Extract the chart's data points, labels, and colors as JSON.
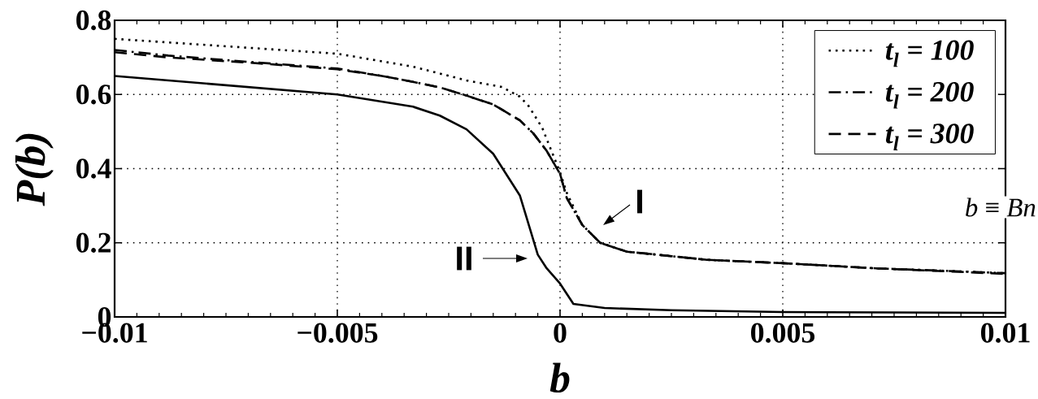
{
  "chart_data": {
    "type": "line",
    "xlabel": "b",
    "ylabel": "P(b)",
    "xlim": [
      -0.01,
      0.01
    ],
    "ylim": [
      0,
      0.8
    ],
    "xticks": [
      {
        "value": -0.01,
        "label": "−0.01"
      },
      {
        "value": -0.005,
        "label": "−0.005"
      },
      0,
      0.005,
      0.01
    ],
    "yticks": [
      0,
      0.2,
      0.4,
      0.6,
      0.8
    ],
    "grid": true,
    "legend": "top right",
    "series": [
      {
        "name": "t$_{l}$ = 100",
        "color": "#000000",
        "line_style": "dotted",
        "x": [
          -0.01,
          -0.0075,
          -0.005,
          -0.0033,
          -0.0021,
          -0.0013,
          -0.0009,
          -0.0007,
          -0.0004,
          -0.0002,
          0,
          0.00015,
          0.0005,
          0.0009,
          0.0015,
          0.0025,
          0.0033,
          0.005,
          0.0071,
          0.0085,
          0.01
        ],
        "values": [
          0.75,
          0.73,
          0.71,
          0.675,
          0.638,
          0.62,
          0.594,
          0.568,
          0.51,
          0.45,
          0.39,
          0.335,
          0.248,
          0.2,
          0.176,
          0.164,
          0.154,
          0.145,
          0.131,
          0.125,
          0.118
        ]
      },
      {
        "name": "t$_{l}$ = 200",
        "color": "#000000",
        "line_style": "dashdot",
        "x": [
          -0.01,
          -0.0088,
          -0.007,
          -0.005,
          -0.004,
          -0.0033,
          -0.0027,
          -0.0021,
          -0.0015,
          -0.0009,
          -0.0006,
          -0.0003,
          0,
          0.00015,
          0.0005,
          0.0009,
          0.0015,
          0.0025,
          0.0033,
          0.005,
          0.0071,
          0.0085,
          0.01
        ],
        "values": [
          0.72,
          0.705,
          0.688,
          0.67,
          0.65,
          0.634,
          0.619,
          0.597,
          0.573,
          0.53,
          0.495,
          0.448,
          0.386,
          0.321,
          0.248,
          0.2,
          0.176,
          0.164,
          0.154,
          0.145,
          0.131,
          0.125,
          0.118
        ]
      },
      {
        "name": "t$_{l}$ = 300",
        "color": "#000000",
        "line_style": "dashed",
        "x": [
          -0.01,
          -0.0088,
          -0.007,
          -0.005,
          -0.004,
          -0.0033,
          -0.0027,
          -0.0021,
          -0.0015,
          -0.0009,
          -0.0006,
          -0.0003,
          0,
          0.00015,
          0.0005,
          0.0009,
          0.0015,
          0.0025,
          0.0033,
          0.005,
          0.0071,
          0.0085,
          0.01
        ],
        "values": [
          0.714,
          0.7,
          0.686,
          0.668,
          0.65,
          0.634,
          0.619,
          0.597,
          0.573,
          0.53,
          0.495,
          0.448,
          0.386,
          0.321,
          0.248,
          0.2,
          0.176,
          0.164,
          0.154,
          0.145,
          0.131,
          0.124,
          0.116
        ]
      },
      {
        "color": "#000000",
        "line_style": "solid",
        "x": [
          -0.01,
          -0.0075,
          -0.005,
          -0.0033,
          -0.0027,
          -0.0021,
          -0.0015,
          -0.0009,
          -0.0005,
          -0.0003,
          0,
          0.0003,
          0.001,
          0.0025,
          0.005,
          0.0075,
          0.01
        ],
        "values": [
          0.65,
          0.625,
          0.6,
          0.567,
          0.543,
          0.506,
          0.44,
          0.327,
          0.168,
          0.131,
          0.09,
          0.035,
          0.024,
          0.018,
          0.013,
          0.012,
          0.011
        ]
      }
    ],
    "annotations": [
      "I",
      "II",
      "*b* ≡ *Bn*"
    ]
  }
}
